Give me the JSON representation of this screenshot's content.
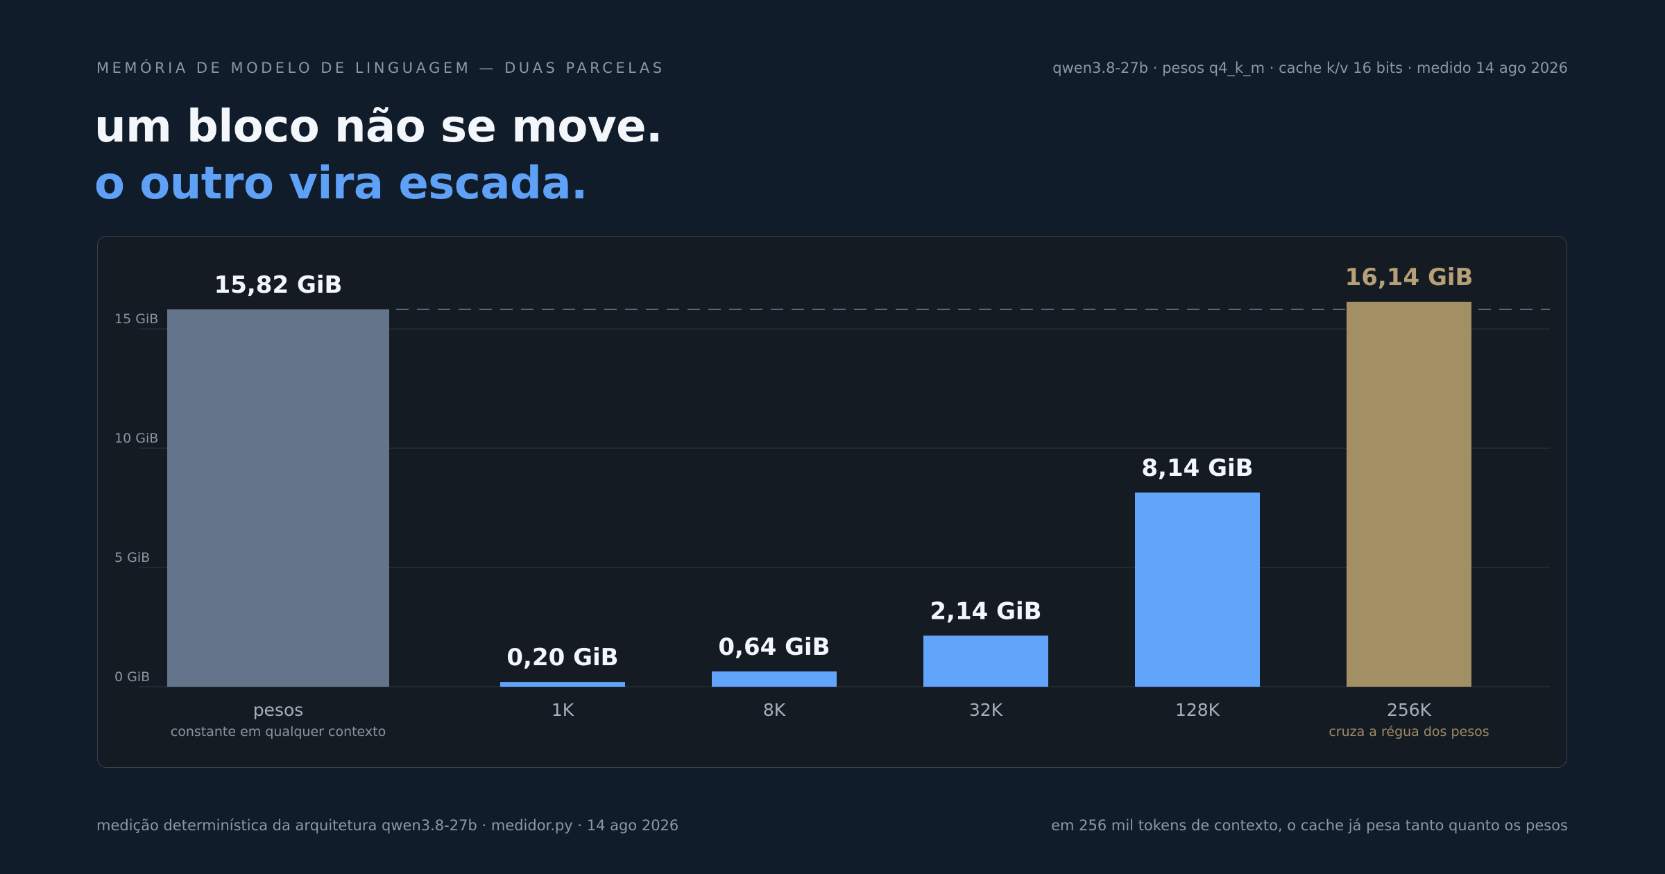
{
  "header": {
    "eyebrow": "MEMÓRIA DE MODELO DE LINGUAGEM — DUAS PARCELAS",
    "meta": "qwen3.8-27b · pesos q4_k_m · cache k/v 16 bits · medido 14 ago 2026",
    "headline_line1": "um bloco não se move.",
    "headline_line2": "o outro vira escada."
  },
  "footer": {
    "left": "medição determinística da arquitetura qwen3.8-27b · medidor.py · 14 ago 2026",
    "right": "em 256 mil tokens de contexto, o cache já pesa tanto quanto os pesos"
  },
  "colors": {
    "background": "#101c2a",
    "panel": "#151b23",
    "weights_bar": "#64758b",
    "cache_bar": "#60a5fa",
    "highlight_bar": "#a38f64",
    "highlight_text": "#b5a077",
    "accent_headline": "#5ea1f7"
  },
  "chart_data": {
    "type": "bar",
    "unit": "GiB",
    "ylim": [
      0,
      16.14
    ],
    "yticks": [
      {
        "value": 0,
        "label": "0 GiB"
      },
      {
        "value": 5,
        "label": "5 GiB"
      },
      {
        "value": 10,
        "label": "10 GiB"
      },
      {
        "value": 15,
        "label": "15 GiB"
      }
    ],
    "grid": true,
    "reference_line": {
      "value": 15.82,
      "style": "dashed"
    },
    "bars": [
      {
        "category": "pesos",
        "value": 15.82,
        "label": "15,82 GiB",
        "sublabel": "constante em qualquer contexto",
        "kind": "weights"
      },
      {
        "category": "1K",
        "value": 0.2,
        "label": "0,20 GiB",
        "sublabel": "",
        "kind": "cache"
      },
      {
        "category": "8K",
        "value": 0.64,
        "label": "0,64 GiB",
        "sublabel": "",
        "kind": "cache"
      },
      {
        "category": "32K",
        "value": 2.14,
        "label": "2,14 GiB",
        "sublabel": "",
        "kind": "cache"
      },
      {
        "category": "128K",
        "value": 8.14,
        "label": "8,14 GiB",
        "sublabel": "",
        "kind": "cache"
      },
      {
        "category": "256K",
        "value": 16.14,
        "label": "16,14 GiB",
        "sublabel": "cruza a régua dos pesos",
        "kind": "highlight"
      }
    ]
  }
}
